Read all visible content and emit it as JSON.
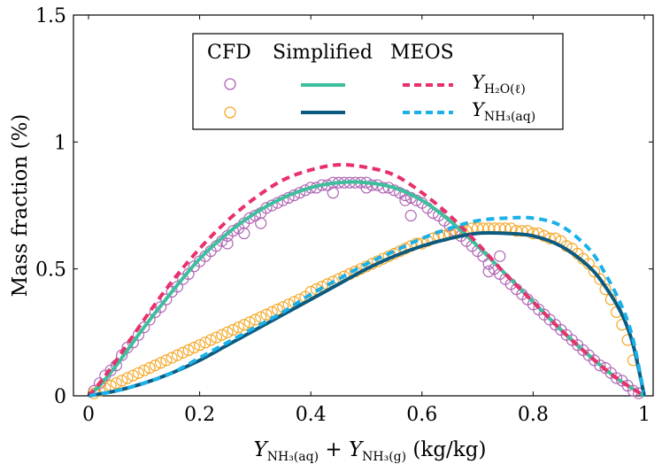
{
  "chart_data": {
    "type": "line",
    "title": "",
    "xlabel": "Y_NH3(aq) + Y_NH3(g) (kg/kg)",
    "ylabel": "Mass fraction (%)",
    "xlim": [
      0,
      1
    ],
    "ylim": [
      0,
      1.5
    ],
    "x_ticks": [
      "0",
      "0.2",
      "0.4",
      "0.6",
      "0.8",
      "1"
    ],
    "y_ticks": [
      "0",
      "0.5",
      "1",
      "1.5"
    ],
    "legend": {
      "placement": "top-center",
      "columns": [
        "CFD",
        "Simplified",
        "MEOS"
      ],
      "rows": [
        {
          "label": "Y",
          "sub": "H2O(ℓ)"
        },
        {
          "label": "Y",
          "sub": "NH3(aq)"
        }
      ]
    },
    "colors": {
      "cfd_h2o": "#b064b4",
      "cfd_nh3": "#f5a623",
      "simplified_h2o": "#3dbf9d",
      "simplified_nh3": "#0b5a80",
      "meos_h2o": "#e8306a",
      "meos_nh3": "#1ab0e8"
    },
    "series": [
      {
        "name": "Simplified Y_H2O(l)",
        "style": "solid",
        "x": [
          0,
          0.02,
          0.05,
          0.1,
          0.15,
          0.2,
          0.25,
          0.3,
          0.35,
          0.4,
          0.45,
          0.5,
          0.55,
          0.6,
          0.65,
          0.7,
          0.75,
          0.8,
          0.85,
          0.9,
          0.95,
          1.0
        ],
        "y": [
          0,
          0.04,
          0.12,
          0.27,
          0.41,
          0.54,
          0.64,
          0.72,
          0.78,
          0.82,
          0.84,
          0.84,
          0.82,
          0.77,
          0.69,
          0.59,
          0.48,
          0.37,
          0.26,
          0.16,
          0.07,
          0
        ]
      },
      {
        "name": "MEOS Y_H2O(l)",
        "style": "dashed",
        "x": [
          0,
          0.02,
          0.05,
          0.1,
          0.15,
          0.2,
          0.25,
          0.3,
          0.35,
          0.4,
          0.45,
          0.5,
          0.55,
          0.6,
          0.65,
          0.7,
          0.75,
          0.8,
          0.85,
          0.9,
          0.95,
          1.0
        ],
        "y": [
          0,
          0.05,
          0.14,
          0.3,
          0.45,
          0.58,
          0.69,
          0.78,
          0.85,
          0.89,
          0.91,
          0.9,
          0.87,
          0.8,
          0.71,
          0.6,
          0.48,
          0.37,
          0.26,
          0.16,
          0.07,
          0
        ]
      },
      {
        "name": "Simplified Y_NH3(aq)",
        "style": "solid",
        "x": [
          0,
          0.05,
          0.1,
          0.15,
          0.2,
          0.25,
          0.3,
          0.35,
          0.4,
          0.45,
          0.5,
          0.55,
          0.6,
          0.65,
          0.7,
          0.75,
          0.8,
          0.85,
          0.9,
          0.93,
          0.96,
          0.98,
          1.0
        ],
        "y": [
          0,
          0.02,
          0.05,
          0.09,
          0.14,
          0.2,
          0.26,
          0.32,
          0.38,
          0.44,
          0.5,
          0.55,
          0.59,
          0.62,
          0.64,
          0.64,
          0.63,
          0.59,
          0.51,
          0.43,
          0.32,
          0.2,
          0
        ]
      },
      {
        "name": "MEOS Y_NH3(aq)",
        "style": "dashed",
        "x": [
          0,
          0.05,
          0.1,
          0.15,
          0.2,
          0.25,
          0.3,
          0.35,
          0.4,
          0.45,
          0.5,
          0.55,
          0.6,
          0.65,
          0.7,
          0.75,
          0.8,
          0.85,
          0.9,
          0.93,
          0.96,
          0.98,
          1.0
        ],
        "y": [
          0,
          0.02,
          0.05,
          0.09,
          0.15,
          0.21,
          0.27,
          0.33,
          0.4,
          0.46,
          0.52,
          0.57,
          0.62,
          0.66,
          0.69,
          0.7,
          0.7,
          0.67,
          0.58,
          0.48,
          0.35,
          0.22,
          0
        ]
      },
      {
        "name": "CFD Y_H2O(l)",
        "style": "markers",
        "x": [
          0.01,
          0.02,
          0.03,
          0.04,
          0.05,
          0.06,
          0.07,
          0.08,
          0.09,
          0.1,
          0.11,
          0.12,
          0.13,
          0.14,
          0.15,
          0.16,
          0.17,
          0.18,
          0.19,
          0.2,
          0.21,
          0.22,
          0.23,
          0.24,
          0.25,
          0.26,
          0.27,
          0.28,
          0.29,
          0.3,
          0.31,
          0.32,
          0.33,
          0.34,
          0.35,
          0.36,
          0.37,
          0.38,
          0.39,
          0.4,
          0.41,
          0.42,
          0.43,
          0.44,
          0.45,
          0.46,
          0.47,
          0.48,
          0.49,
          0.5,
          0.51,
          0.52,
          0.53,
          0.54,
          0.55,
          0.56,
          0.57,
          0.58,
          0.59,
          0.6,
          0.61,
          0.62,
          0.63,
          0.64,
          0.65,
          0.66,
          0.67,
          0.68,
          0.69,
          0.7,
          0.71,
          0.72,
          0.73,
          0.74,
          0.75,
          0.76,
          0.77,
          0.78,
          0.79,
          0.8,
          0.81,
          0.82,
          0.83,
          0.84,
          0.85,
          0.86,
          0.87,
          0.88,
          0.89,
          0.9,
          0.91,
          0.92,
          0.93,
          0.94,
          0.95,
          0.96,
          0.97,
          0.98,
          0.99,
          0.25,
          0.28,
          0.31,
          0.44,
          0.5,
          0.57,
          0.58,
          0.72,
          0.74
        ],
        "y": [
          0.02,
          0.05,
          0.08,
          0.1,
          0.12,
          0.16,
          0.19,
          0.21,
          0.24,
          0.27,
          0.3,
          0.33,
          0.35,
          0.38,
          0.41,
          0.43,
          0.46,
          0.48,
          0.51,
          0.53,
          0.55,
          0.57,
          0.59,
          0.61,
          0.63,
          0.65,
          0.66,
          0.68,
          0.7,
          0.71,
          0.72,
          0.74,
          0.75,
          0.76,
          0.77,
          0.78,
          0.79,
          0.8,
          0.81,
          0.82,
          0.82,
          0.83,
          0.83,
          0.84,
          0.84,
          0.84,
          0.84,
          0.84,
          0.84,
          0.84,
          0.83,
          0.83,
          0.82,
          0.82,
          0.81,
          0.8,
          0.79,
          0.78,
          0.77,
          0.76,
          0.74,
          0.72,
          0.71,
          0.69,
          0.67,
          0.65,
          0.63,
          0.61,
          0.59,
          0.57,
          0.55,
          0.52,
          0.5,
          0.48,
          0.46,
          0.44,
          0.42,
          0.4,
          0.38,
          0.36,
          0.34,
          0.32,
          0.3,
          0.28,
          0.26,
          0.24,
          0.22,
          0.2,
          0.18,
          0.16,
          0.14,
          0.12,
          0.11,
          0.09,
          0.07,
          0.06,
          0.04,
          0.02,
          0.01,
          0.6,
          0.64,
          0.68,
          0.8,
          0.82,
          0.77,
          0.71,
          0.49,
          0.55
        ]
      },
      {
        "name": "CFD Y_NH3(aq)",
        "style": "markers",
        "x": [
          0.01,
          0.02,
          0.03,
          0.04,
          0.05,
          0.06,
          0.07,
          0.08,
          0.09,
          0.1,
          0.11,
          0.12,
          0.13,
          0.14,
          0.15,
          0.16,
          0.17,
          0.18,
          0.19,
          0.2,
          0.21,
          0.22,
          0.23,
          0.24,
          0.25,
          0.26,
          0.27,
          0.28,
          0.29,
          0.3,
          0.31,
          0.32,
          0.33,
          0.34,
          0.35,
          0.36,
          0.37,
          0.38,
          0.39,
          0.4,
          0.41,
          0.42,
          0.43,
          0.44,
          0.45,
          0.46,
          0.47,
          0.48,
          0.49,
          0.5,
          0.51,
          0.52,
          0.53,
          0.54,
          0.55,
          0.56,
          0.57,
          0.58,
          0.59,
          0.6,
          0.61,
          0.62,
          0.63,
          0.64,
          0.65,
          0.66,
          0.67,
          0.68,
          0.69,
          0.7,
          0.71,
          0.72,
          0.73,
          0.74,
          0.75,
          0.76,
          0.77,
          0.78,
          0.79,
          0.8,
          0.81,
          0.82,
          0.83,
          0.84,
          0.85,
          0.86,
          0.87,
          0.88,
          0.89,
          0.9,
          0.91,
          0.92,
          0.93,
          0.94,
          0.95,
          0.96,
          0.97,
          0.98
        ],
        "y": [
          0.01,
          0.02,
          0.03,
          0.04,
          0.05,
          0.06,
          0.07,
          0.08,
          0.09,
          0.1,
          0.11,
          0.12,
          0.13,
          0.14,
          0.15,
          0.16,
          0.17,
          0.18,
          0.19,
          0.2,
          0.21,
          0.22,
          0.23,
          0.24,
          0.25,
          0.26,
          0.27,
          0.28,
          0.29,
          0.3,
          0.31,
          0.32,
          0.33,
          0.34,
          0.35,
          0.36,
          0.37,
          0.38,
          0.39,
          0.41,
          0.42,
          0.43,
          0.44,
          0.45,
          0.46,
          0.47,
          0.48,
          0.49,
          0.5,
          0.51,
          0.52,
          0.53,
          0.54,
          0.55,
          0.56,
          0.57,
          0.58,
          0.59,
          0.6,
          0.6,
          0.61,
          0.62,
          0.63,
          0.63,
          0.64,
          0.64,
          0.65,
          0.65,
          0.66,
          0.66,
          0.66,
          0.66,
          0.66,
          0.66,
          0.66,
          0.66,
          0.65,
          0.65,
          0.65,
          0.64,
          0.64,
          0.63,
          0.62,
          0.62,
          0.61,
          0.59,
          0.58,
          0.56,
          0.54,
          0.52,
          0.49,
          0.46,
          0.42,
          0.38,
          0.33,
          0.28,
          0.22,
          0.14
        ]
      }
    ]
  }
}
